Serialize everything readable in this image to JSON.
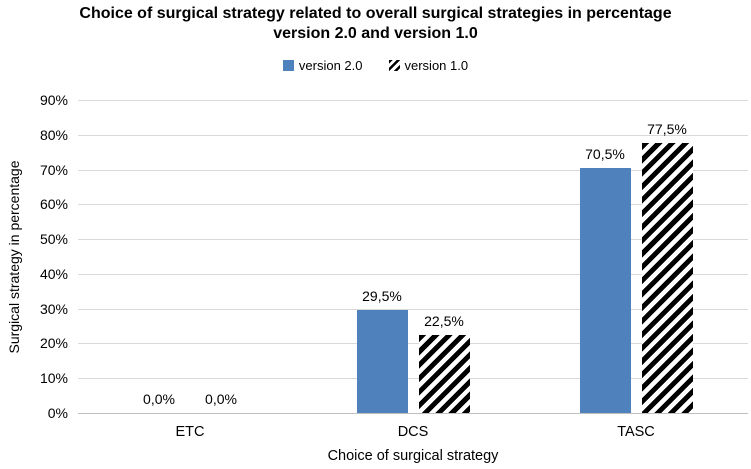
{
  "chart_data": {
    "type": "bar",
    "title": "Choice of surgical strategy related to overall surgical strategies in percentage version 2.0 and version 1.0",
    "categories": [
      "ETC",
      "DCS",
      "TASC"
    ],
    "series": [
      {
        "name": "version 2.0",
        "values": [
          0.0,
          29.5,
          70.5
        ],
        "labels": [
          "0,0%",
          "29,5%",
          "70,5%"
        ],
        "fill": "solid",
        "color": "#4F81BD"
      },
      {
        "name": "version 1.0",
        "values": [
          0.0,
          22.5,
          77.5
        ],
        "labels": [
          "0,0%",
          "22,5%",
          "77,5%"
        ],
        "fill": "diagonal-hatch",
        "color": "#000000"
      }
    ],
    "xlabel": "Choice of surgical strategy",
    "ylabel": "Surgical strategy in percentage",
    "ylim": [
      0,
      90
    ],
    "ytick_step": 10,
    "ytick_labels": [
      "0%",
      "10%",
      "20%",
      "30%",
      "40%",
      "50%",
      "60%",
      "70%",
      "80%",
      "90%"
    ],
    "grid": true,
    "legend_position": "top",
    "decimal_separator": ","
  },
  "colors": {
    "bar_blue": "#4F81BD",
    "hatch_foreground": "#000000",
    "hatch_background": "#FFFFFF",
    "gridline": "#D9D9D9",
    "axis_line": "#BFBFBF",
    "text": "#000000",
    "background": "#FFFFFF"
  }
}
